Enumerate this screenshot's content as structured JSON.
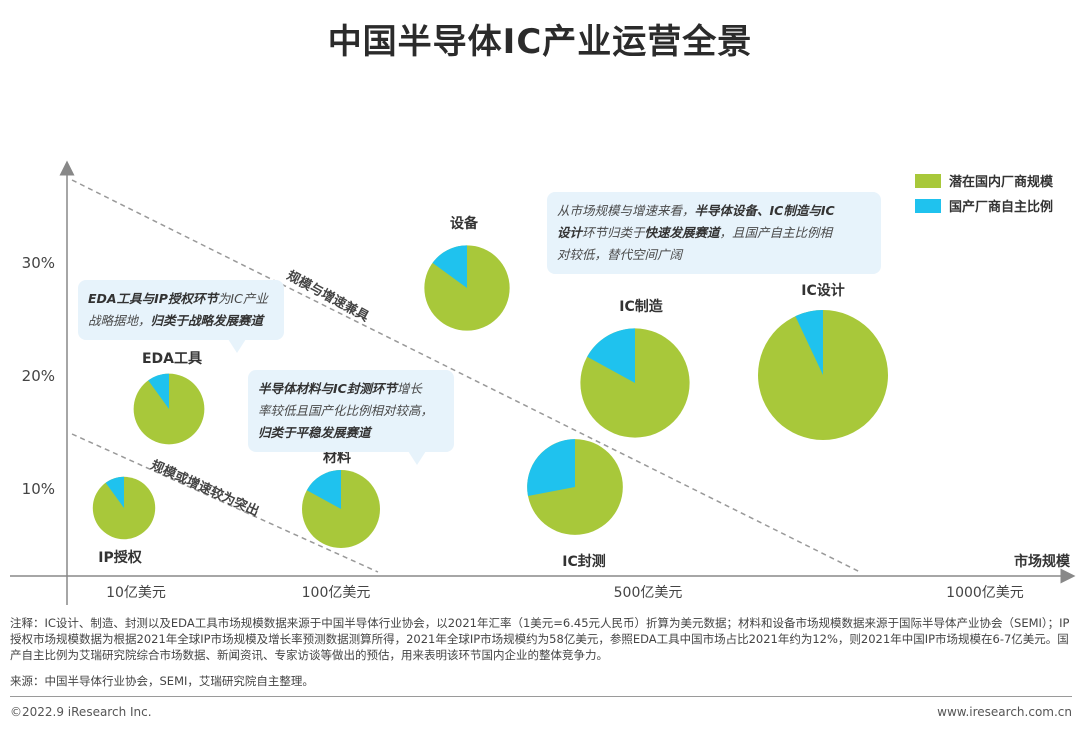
{
  "title": "中国半导体IC产业运营全景",
  "colors": {
    "green": "#a8c83a",
    "blue": "#1fc2ee",
    "axis": "#888888",
    "dash": "#999999"
  },
  "legend": [
    {
      "label": "潜在国内厂商规模",
      "color": "#a8c83a"
    },
    {
      "label": "国产厂商自主比例",
      "color": "#1fc2ee"
    }
  ],
  "callouts": {
    "eda": {
      "line1_bold": "EDA工具与IP授权环节",
      "line1_rest": "为IC产业",
      "line2_plain": "战略据地，",
      "line2_bold": "归类于战略发展赛道"
    },
    "material": {
      "line1_bold": "半导体材料与IC封测环节",
      "line1_rest": "增长",
      "line2": "率较低且国产化比例相对较高，",
      "line3_bold": "归类于平稳发展赛道"
    },
    "equipment": {
      "line1_plain": "从市场规模与增速来看，",
      "line1_bold": "半导体设备、IC制造与IC",
      "line2_bold1": "设计",
      "line2_plain1": "环节归类于",
      "line2_bold2": "快速发展赛道",
      "line2_plain2": "，且国产自主比例相",
      "line3": "对较低，替代空间广阔"
    }
  },
  "diagonal_labels": {
    "upper": "规模与增速兼具",
    "lower": "规模或增速较为突出"
  },
  "note": "注释：IC设计、制造、封测以及EDA工具市场规模数据来源于中国半导体行业协会，以2021年汇率（1美元=6.45元人民币）折算为美元数据；材料和设备市场规模数据来源于国际半导体产业协会（SEMI）；IP授权市场规模数据为根据2021年全球IP市场规模及增长率预测数据测算所得，2021年全球IP市场规模约为58亿美元，参照EDA工具中国市场占比2021年约为12%，则2021年中国IP市场规模在6-7亿美元。国产自主比例为艾瑞研究院综合市场数据、新闻资讯、专家访谈等做出的预估，用来表明该环节国内企业的整体竞争力。",
  "source": "来源：中国半导体行业协会，SEMI，艾瑞研究院自主整理。",
  "copyright": "©2022.9 iResearch Inc.",
  "website": "www.iresearch.com.cn",
  "chart_data": {
    "type": "bubble",
    "xlabel": "市场规模",
    "ylabel": "",
    "x_ticks": [
      "10亿美元",
      "100亿美元",
      "500亿美元",
      "1000亿美元"
    ],
    "y_ticks": [
      "10%",
      "20%",
      "30%"
    ],
    "y_tick_values": [
      10,
      20,
      30
    ],
    "ylim": [
      0,
      38
    ],
    "grid": false,
    "legend_position": "top-right",
    "series": [
      {
        "name": "潜在国内厂商规模",
        "role": "pie-remainder"
      },
      {
        "name": "国产厂商自主比例",
        "role": "pie-share"
      }
    ],
    "points": [
      {
        "label": "IP授权",
        "x_band": 0.5,
        "y": 8.5,
        "size": 0.6,
        "share": 0.1
      },
      {
        "label": "EDA工具",
        "x_band": 0.55,
        "y": 16.5,
        "size": 0.68,
        "share": 0.1
      },
      {
        "label": "材料",
        "x_band": 1.38,
        "y": 7.3,
        "size": 0.75,
        "share": 0.17
      },
      {
        "label": "设备",
        "x_band": 1.98,
        "y": 25.3,
        "size": 0.82,
        "share": 0.15
      },
      {
        "label": "IC封测",
        "x_band": 2.5,
        "y": 7.8,
        "size": 0.92,
        "share": 0.28
      },
      {
        "label": "IC制造",
        "x_band": 2.62,
        "y": 17.3,
        "size": 1.05,
        "share": 0.17
      },
      {
        "label": "IC设计",
        "x_band": 3.35,
        "y": 18.9,
        "size": 1.25,
        "share": 0.07
      }
    ]
  }
}
